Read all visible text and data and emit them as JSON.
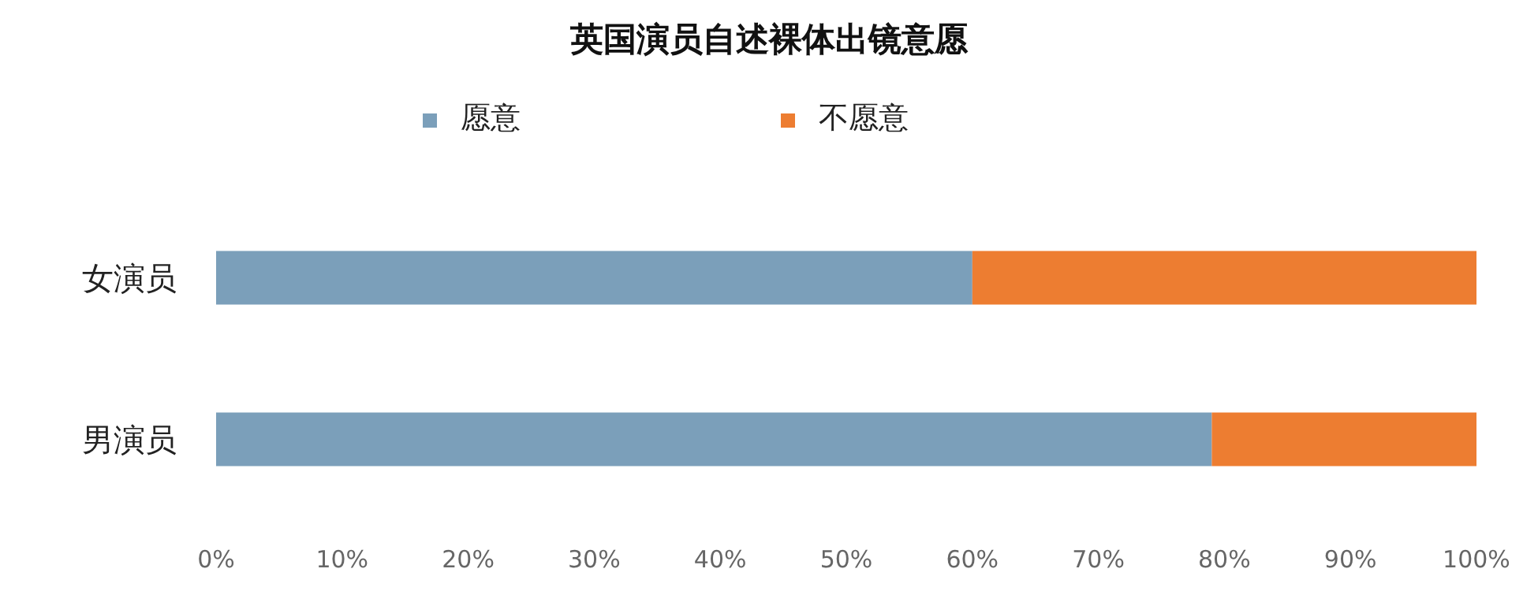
{
  "chart_data": {
    "type": "bar",
    "orientation": "horizontal",
    "stacked": true,
    "title": "英国演员自述裸体出镜意愿",
    "categories": [
      "女演员",
      "男演员"
    ],
    "series": [
      {
        "name": "愿意",
        "color": "#7b9fba",
        "values": [
          60,
          79
        ]
      },
      {
        "name": "不愿意",
        "color": "#ed7d31",
        "values": [
          40,
          21
        ]
      }
    ],
    "xlim": [
      0,
      100
    ],
    "xticks": [
      {
        "value": 0,
        "label": "0%"
      },
      {
        "value": 10,
        "label": "10%"
      },
      {
        "value": 20,
        "label": "20%"
      },
      {
        "value": 30,
        "label": "30%"
      },
      {
        "value": 40,
        "label": "40%"
      },
      {
        "value": 50,
        "label": "50%"
      },
      {
        "value": 60,
        "label": "60%"
      },
      {
        "value": 70,
        "label": "70%"
      },
      {
        "value": 80,
        "label": "80%"
      },
      {
        "value": 90,
        "label": "90%"
      },
      {
        "value": 100,
        "label": "100%"
      }
    ],
    "legend": "top"
  }
}
